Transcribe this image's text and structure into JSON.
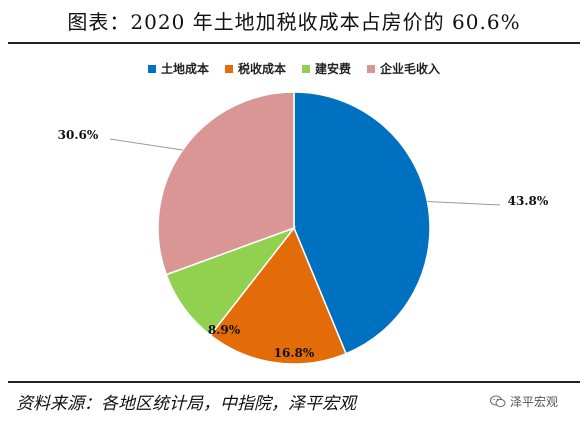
{
  "title": "图表：2020 年土地加税收成本占房价的 60.6%",
  "source": "资料来源：各地区统计局，中指院，泽平宏观",
  "watermark": "泽平宏观",
  "chart_data": {
    "type": "pie",
    "series": [
      {
        "name": "土地成本",
        "value": 43.8,
        "label": "43.8%",
        "color": "#0070C0"
      },
      {
        "name": "税收成本",
        "value": 16.8,
        "label": "16.8%",
        "color": "#E36C09"
      },
      {
        "name": "建安费",
        "value": 8.9,
        "label": "8.9%",
        "color": "#92D050"
      },
      {
        "name": "企业毛收入",
        "value": 30.6,
        "label": "30.6%",
        "color": "#D99694"
      }
    ],
    "legend_position": "top"
  }
}
